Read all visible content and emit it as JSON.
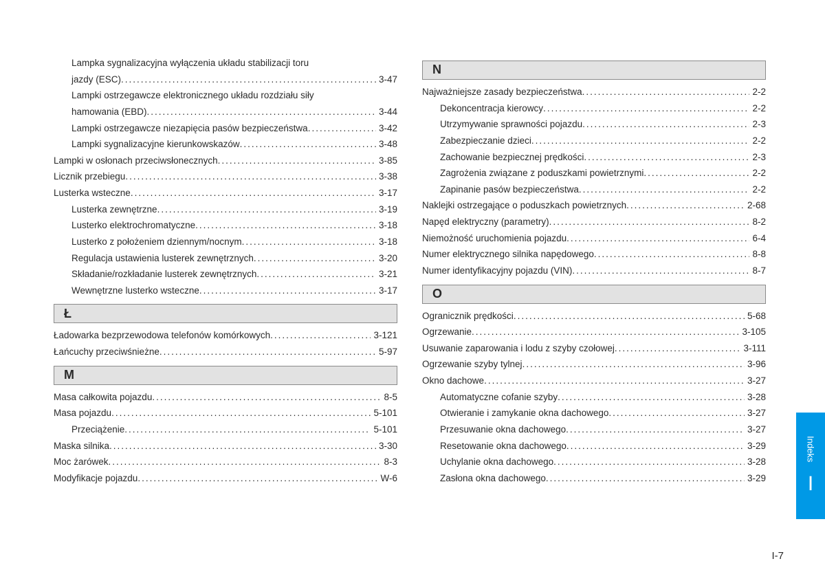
{
  "text_color": "#2a2a2a",
  "header_bg": "#e2e2e2",
  "header_border": "#8a8a8a",
  "tab_color": "#0099e6",
  "page_number": "I-7",
  "side_tab": {
    "label": "Indeks",
    "letter": "I"
  },
  "left": {
    "top": [
      {
        "l1": "Lampka sygnalizacyjna wyłączenia układu stabilizacji toru",
        "l2": "jazdy (ESC)",
        "pg": "3-47",
        "sub": true
      },
      {
        "l1": "Lampki ostrzegawcze elektronicznego układu rozdziału siły",
        "l2": "hamowania (EBD)",
        "pg": "3-44",
        "sub": true
      },
      {
        "label": "Lampki ostrzegawcze niezapięcia pasów bezpieczeństwa",
        "pg": "3-42",
        "sub": true
      },
      {
        "label": "Lampki sygnalizacyjne kierunkowskazów",
        "pg": "3-48",
        "sub": true
      },
      {
        "label": "Lampki w osłonach przeciwsłonecznych",
        "pg": "3-85"
      },
      {
        "label": "Licznik przebiegu",
        "pg": "3-38"
      },
      {
        "label": "Lusterka wsteczne",
        "pg": "3-17"
      },
      {
        "label": "Lusterka zewnętrzne",
        "pg": "3-19",
        "sub": true
      },
      {
        "label": "Lusterko elektrochromatyczne",
        "pg": "3-18",
        "sub": true
      },
      {
        "label": "Lusterko z położeniem dziennym/nocnym",
        "pg": "3-18",
        "sub": true
      },
      {
        "label": "Regulacja ustawienia lusterek zewnętrznych",
        "pg": "3-20",
        "sub": true
      },
      {
        "label": "Składanie/rozkładanie lusterek zewnętrznych",
        "pg": "3-21",
        "sub": true
      },
      {
        "label": "Wewnętrzne lusterko wsteczne",
        "pg": "3-17",
        "sub": true
      }
    ],
    "sec_L": {
      "header": "Ł",
      "items": [
        {
          "label": "Ładowarka bezprzewodowa telefonów komórkowych",
          "pg": "3-121"
        },
        {
          "label": "Łańcuchy przeciwśnieżne",
          "pg": "5-97"
        }
      ]
    },
    "sec_M": {
      "header": "M",
      "items": [
        {
          "label": "Masa całkowita pojazdu",
          "pg": "8-5"
        },
        {
          "label": "Masa pojazdu",
          "pg": "5-101"
        },
        {
          "label": "Przeciążenie",
          "pg": "5-101",
          "sub": true
        },
        {
          "label": "Maska silnika",
          "pg": "3-30"
        },
        {
          "label": "Moc żarówek",
          "pg": "8-3"
        },
        {
          "label": "Modyfikacje pojazdu",
          "pg": "W-6"
        }
      ]
    }
  },
  "right": {
    "sec_N": {
      "header": "N",
      "items": [
        {
          "label": "Najważniejsze zasady bezpieczeństwa",
          "pg": "2-2"
        },
        {
          "label": "Dekoncentracja kierowcy",
          "pg": "2-2",
          "sub": true
        },
        {
          "label": "Utrzymywanie sprawności pojazdu",
          "pg": "2-3",
          "sub": true
        },
        {
          "label": "Zabezpieczanie dzieci",
          "pg": "2-2",
          "sub": true
        },
        {
          "label": "Zachowanie bezpiecznej prędkości",
          "pg": "2-3",
          "sub": true
        },
        {
          "label": "Zagrożenia związane z poduszkami powietrznymi",
          "pg": "2-2",
          "sub": true
        },
        {
          "label": "Zapinanie pasów bezpieczeństwa",
          "pg": "2-2",
          "sub": true
        },
        {
          "label": "Naklejki ostrzegające o poduszkach powietrznych",
          "pg": "2-68"
        },
        {
          "label": "Napęd elektryczny (parametry)",
          "pg": "8-2"
        },
        {
          "label": "Niemożność uruchomienia pojazdu",
          "pg": "6-4"
        },
        {
          "label": "Numer elektrycznego silnika napędowego",
          "pg": "8-8"
        },
        {
          "label": "Numer identyfikacyjny pojazdu (VIN)",
          "pg": "8-7"
        }
      ]
    },
    "sec_O": {
      "header": "O",
      "items": [
        {
          "label": "Ogranicznik prędkości",
          "pg": "5-68"
        },
        {
          "label": "Ogrzewanie",
          "pg": "3-105"
        },
        {
          "label": "Usuwanie zaparowania i lodu z szyby czołowej ",
          "pg": "3-111"
        },
        {
          "label": "Ogrzewanie szyby tylnej",
          "pg": "3-96"
        },
        {
          "label": "Okno dachowe",
          "pg": "3-27"
        },
        {
          "label": "Automatyczne cofanie szyby",
          "pg": "3-28",
          "sub": true
        },
        {
          "label": "Otwieranie i zamykanie okna dachowego",
          "pg": "3-27",
          "sub": true
        },
        {
          "label": "Przesuwanie okna dachowego",
          "pg": "3-27",
          "sub": true
        },
        {
          "label": "Resetowanie okna dachowego",
          "pg": "3-29",
          "sub": true
        },
        {
          "label": "Uchylanie okna dachowego",
          "pg": "3-28",
          "sub": true
        },
        {
          "label": "Zasłona okna dachowego",
          "pg": "3-29",
          "sub": true
        }
      ]
    }
  }
}
